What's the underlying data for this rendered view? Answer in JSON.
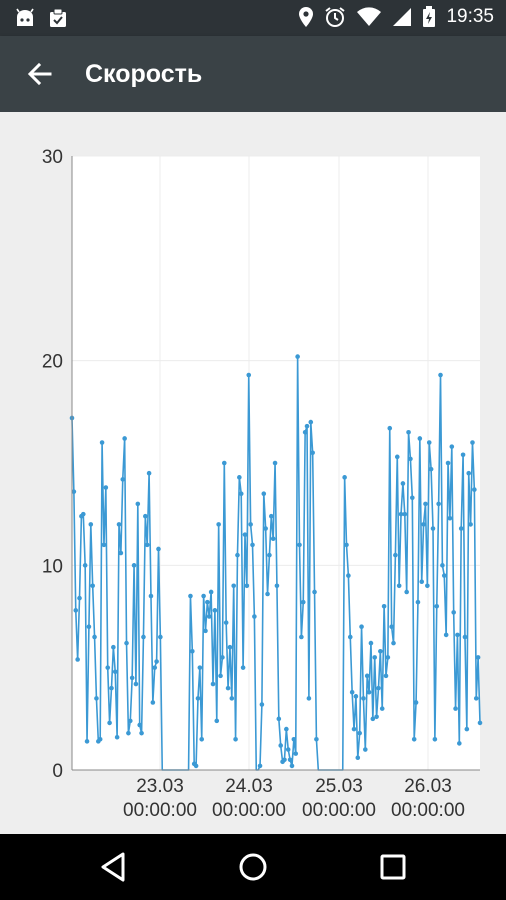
{
  "status_bar": {
    "time": "19:35",
    "left_icons": [
      "android-icon",
      "clipboard-check-icon"
    ],
    "right_icons": [
      "location-icon",
      "alarm-icon",
      "wifi-icon",
      "signal-icon",
      "battery-charging-icon"
    ]
  },
  "app_bar": {
    "title": "Скорость"
  },
  "chart_data": {
    "type": "line",
    "ylim": [
      0,
      30
    ],
    "y_ticks": [
      "0",
      "10",
      "20",
      "30"
    ],
    "x_ticks": [
      {
        "date": "23.03",
        "time": "00:00:00"
      },
      {
        "date": "24.03",
        "time": "00:00:00"
      },
      {
        "date": "25.03",
        "time": "00:00:00"
      },
      {
        "date": "26.03",
        "time": "00:00:00"
      }
    ],
    "series": [
      {
        "values": [
          17.2,
          13.6,
          7.8,
          5.4,
          8.4,
          12.4,
          12.5,
          10.0,
          1.4,
          7.0,
          12.0,
          9.0,
          6.5,
          3.5,
          1.4,
          1.5,
          16.0,
          11.0,
          13.8,
          5.0,
          2.3,
          4.0,
          6.0,
          4.8,
          1.6,
          12.0,
          10.6,
          14.2,
          16.2,
          6.2,
          1.8,
          2.4,
          4.5,
          10.0,
          4.2,
          13.0,
          2.2,
          1.8,
          6.5,
          12.4,
          11.0,
          14.5,
          8.5,
          3.3,
          5.0,
          5.3,
          10.8,
          6.5,
          0,
          0,
          0,
          0,
          0,
          0,
          0,
          0,
          0,
          0,
          0,
          0,
          0,
          0,
          0,
          8.5,
          5.8,
          0.3,
          0.2,
          3.5,
          5.0,
          1.5,
          8.5,
          6.8,
          8.2,
          7.5,
          8.7,
          4.2,
          7.8,
          2.4,
          12.0,
          4.6,
          5.5,
          15.0,
          7.2,
          4.0,
          6.0,
          3.5,
          9.0,
          1.5,
          10.5,
          14.3,
          13.5,
          5.0,
          11.5,
          9.0,
          19.3,
          12.0,
          11.0,
          7.5,
          0,
          0,
          0.2,
          3.2,
          13.5,
          11.8,
          8.6,
          10.5,
          12.4,
          11.3,
          15.0,
          9.0,
          2.5,
          1.2,
          0.4,
          0.5,
          2.0,
          1.0,
          0.5,
          0.2,
          1.5,
          0.8,
          20.2,
          11.0,
          6.5,
          8.2,
          16.5,
          16.8,
          3.5,
          17.0,
          15.5,
          8.7,
          1.5,
          0,
          0,
          0,
          0,
          0,
          0,
          0,
          0,
          0,
          0,
          0,
          0,
          0,
          0,
          14.3,
          11.0,
          9.5,
          6.5,
          3.8,
          2.0,
          3.6,
          0.6,
          1.8,
          7.0,
          3.5,
          1.0,
          4.6,
          3.8,
          6.2,
          2.5,
          5.5,
          2.6,
          4.0,
          5.8,
          3.0,
          8.0,
          4.6,
          5.5,
          16.7,
          7.0,
          6.2,
          10.5,
          15.3,
          9.0,
          12.5,
          14.0,
          12.5,
          8.7,
          16.5,
          15.2,
          13.3,
          1.5,
          3.3,
          8.2,
          16.2,
          9.2,
          12.0,
          13.0,
          9.0,
          16.0,
          14.7,
          11.8,
          1.5,
          8.0,
          13.0,
          19.3,
          10.0,
          9.5,
          6.6,
          15.0,
          12.3,
          15.8,
          7.7,
          3.0,
          6.6,
          1.3,
          11.8,
          15.4,
          6.5,
          2.0,
          14.5,
          12.0,
          16.0,
          13.7,
          3.5,
          5.5,
          2.3
        ]
      }
    ]
  },
  "nav_bar": {
    "buttons": [
      "back-triangle-icon",
      "home-circle-icon",
      "recents-square-icon"
    ]
  }
}
